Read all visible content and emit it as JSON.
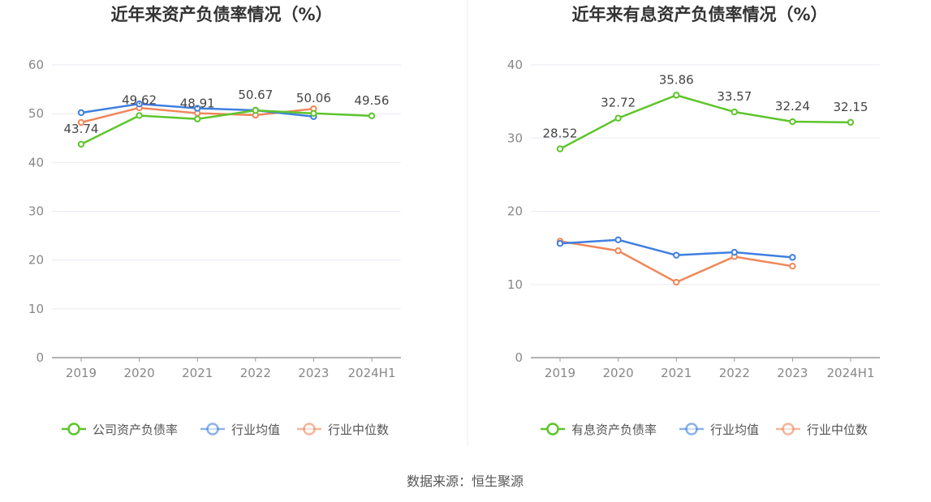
{
  "source": "数据来源：恒生聚源",
  "chart_data": [
    {
      "type": "line",
      "title": "近年来资产负债率情况（%）",
      "categories": [
        "2019",
        "2020",
        "2021",
        "2022",
        "2023",
        "2024H1"
      ],
      "ylim": [
        0,
        60
      ],
      "yticks": [
        0,
        10,
        20,
        30,
        40,
        50,
        60
      ],
      "grid": true,
      "legend_position": "bottom",
      "series": [
        {
          "name": "公司资产负债率",
          "color": "#5ec52b",
          "values": [
            43.74,
            49.62,
            48.91,
            50.67,
            50.06,
            49.56
          ],
          "labels": [
            "43.74",
            "49.62",
            "48.91",
            "50.67",
            "50.06",
            "49.56"
          ]
        },
        {
          "name": "行业均值",
          "color": "#3f7fe0",
          "values": [
            50.2,
            52.0,
            51.1,
            50.7,
            49.4,
            null
          ]
        },
        {
          "name": "行业中位数",
          "color": "#f0875a",
          "values": [
            48.2,
            51.2,
            50.1,
            49.7,
            51.0,
            null
          ]
        }
      ]
    },
    {
      "type": "line",
      "title": "近年来有息资产负债率情况（%）",
      "categories": [
        "2019",
        "2020",
        "2021",
        "2022",
        "2023",
        "2024H1"
      ],
      "ylim": [
        0,
        40
      ],
      "yticks": [
        0,
        10,
        20,
        30,
        40
      ],
      "grid": true,
      "legend_position": "bottom",
      "series": [
        {
          "name": "有息资产负债率",
          "color": "#5ec52b",
          "values": [
            28.52,
            32.72,
            35.86,
            33.57,
            32.24,
            32.15
          ],
          "labels": [
            "28.52",
            "32.72",
            "35.86",
            "33.57",
            "32.24",
            "32.15"
          ]
        },
        {
          "name": "行业均值",
          "color": "#3f7fe0",
          "values": [
            15.6,
            16.1,
            14.0,
            14.4,
            13.7,
            null
          ]
        },
        {
          "name": "行业中位数",
          "color": "#f0875a",
          "values": [
            15.9,
            14.6,
            10.3,
            13.8,
            12.5,
            null
          ]
        }
      ]
    }
  ]
}
